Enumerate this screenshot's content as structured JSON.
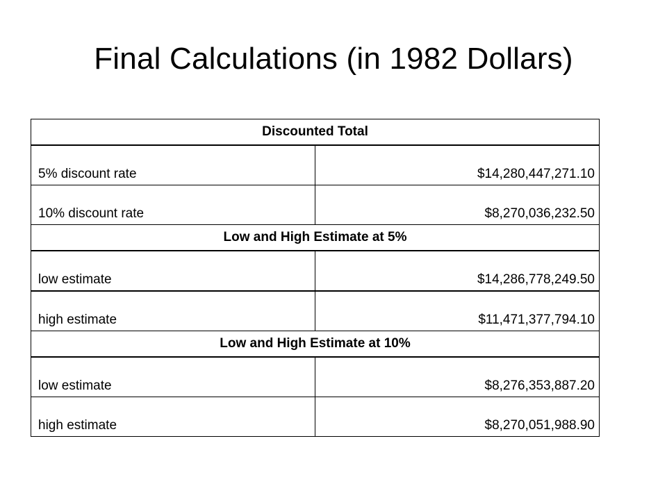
{
  "title": "Final Calculations (in 1982 Dollars)",
  "sections": [
    {
      "header": "Discounted Total",
      "rows": [
        {
          "label": "5% discount rate",
          "value": "$14,280,447,271.10"
        },
        {
          "label": "10% discount rate",
          "value": "$8,270,036,232.50"
        }
      ]
    },
    {
      "header": "Low and High Estimate at 5%",
      "rows": [
        {
          "label": "low estimate",
          "value": "$14,286,778,249.50"
        },
        {
          "label": "high estimate",
          "value": "$11,471,377,794.10"
        }
      ]
    },
    {
      "header": "Low and High Estimate at 10%",
      "rows": [
        {
          "label": "low estimate",
          "value": "$8,276,353,887.20"
        },
        {
          "label": "high estimate",
          "value": "$8,270,051,988.90"
        }
      ]
    }
  ]
}
